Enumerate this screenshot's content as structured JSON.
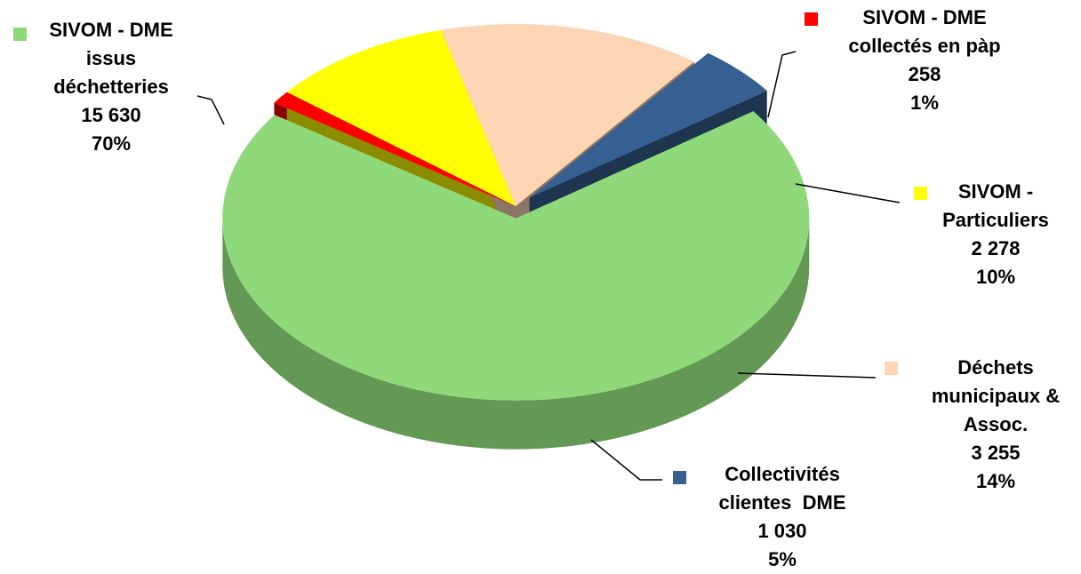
{
  "chart_data": {
    "type": "pie3d",
    "categories": [
      "SIVOM - DME\nissus\ndéchetteries",
      "SIVOM - DME\ncollectés en pàp",
      "SIVOM -\nParticuliers",
      "Déchets\nmunicipaux &\nAssoc.",
      "Collectivités\nclientes  DME"
    ],
    "values": [
      15630,
      258,
      2278,
      3255,
      1030
    ],
    "value_labels": [
      "15 630",
      "258",
      "2 278",
      "3 255",
      "1 030"
    ],
    "percents": [
      70,
      1,
      10,
      14,
      5
    ],
    "percent_labels": [
      "70%",
      "1%",
      "10%",
      "14%",
      "5%"
    ],
    "colors": [
      "#8fd97a",
      "#ff0000",
      "#ffff00",
      "#fcd5b5",
      "#366092"
    ],
    "explode": [
      true,
      false,
      false,
      false,
      true
    ]
  }
}
